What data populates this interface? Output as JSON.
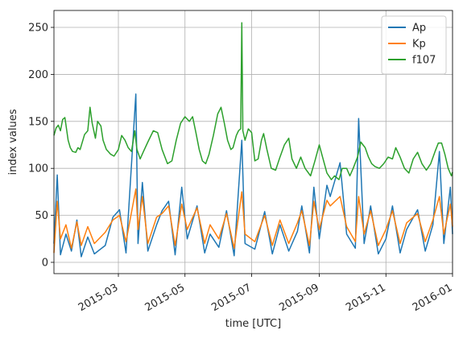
{
  "chart_data": {
    "type": "line",
    "title": "",
    "xlabel": "time [UTC]",
    "ylabel": "index values",
    "x_start": "2015-01-01",
    "x_end": "2016-01-01",
    "xlim": [
      "2015-01-01",
      "2016-01-01"
    ],
    "ylim": [
      -12,
      268
    ],
    "grid": true,
    "legend_position": "top-right",
    "x_ticks": [
      {
        "date": "2015-03-01",
        "label": "2015-03"
      },
      {
        "date": "2015-05-01",
        "label": "2015-05"
      },
      {
        "date": "2015-07-01",
        "label": "2015-07"
      },
      {
        "date": "2015-09-01",
        "label": "2015-09"
      },
      {
        "date": "2015-11-01",
        "label": "2015-11"
      },
      {
        "date": "2016-01-01",
        "label": "2016-01"
      }
    ],
    "y_ticks": [
      0,
      50,
      100,
      150,
      200,
      250
    ],
    "series": [
      {
        "name": "Ap",
        "color": "#1f77b4",
        "points": [
          [
            "2015-01-01",
            20
          ],
          [
            "2015-01-04",
            93
          ],
          [
            "2015-01-07",
            8
          ],
          [
            "2015-01-12",
            30
          ],
          [
            "2015-01-17",
            12
          ],
          [
            "2015-01-22",
            45
          ],
          [
            "2015-01-26",
            6
          ],
          [
            "2015-02-01",
            27
          ],
          [
            "2015-02-07",
            9
          ],
          [
            "2015-02-17",
            18
          ],
          [
            "2015-02-24",
            48
          ],
          [
            "2015-03-02",
            56
          ],
          [
            "2015-03-08",
            10
          ],
          [
            "2015-03-17",
            179
          ],
          [
            "2015-03-19",
            20
          ],
          [
            "2015-03-23",
            85
          ],
          [
            "2015-03-28",
            12
          ],
          [
            "2015-04-05",
            40
          ],
          [
            "2015-04-10",
            55
          ],
          [
            "2015-04-16",
            65
          ],
          [
            "2015-04-22",
            8
          ],
          [
            "2015-04-28",
            80
          ],
          [
            "2015-05-03",
            25
          ],
          [
            "2015-05-12",
            60
          ],
          [
            "2015-05-19",
            10
          ],
          [
            "2015-05-24",
            30
          ],
          [
            "2015-06-01",
            16
          ],
          [
            "2015-06-08",
            55
          ],
          [
            "2015-06-15",
            7
          ],
          [
            "2015-06-22",
            130
          ],
          [
            "2015-06-25",
            20
          ],
          [
            "2015-07-04",
            14
          ],
          [
            "2015-07-13",
            54
          ],
          [
            "2015-07-20",
            9
          ],
          [
            "2015-07-27",
            40
          ],
          [
            "2015-08-04",
            12
          ],
          [
            "2015-08-12",
            33
          ],
          [
            "2015-08-16",
            60
          ],
          [
            "2015-08-23",
            10
          ],
          [
            "2015-08-27",
            80
          ],
          [
            "2015-09-01",
            25
          ],
          [
            "2015-09-08",
            82
          ],
          [
            "2015-09-11",
            70
          ],
          [
            "2015-09-20",
            106
          ],
          [
            "2015-09-26",
            30
          ],
          [
            "2015-10-04",
            15
          ],
          [
            "2015-10-07",
            153
          ],
          [
            "2015-10-12",
            20
          ],
          [
            "2015-10-18",
            60
          ],
          [
            "2015-10-25",
            9
          ],
          [
            "2015-11-01",
            25
          ],
          [
            "2015-11-07",
            60
          ],
          [
            "2015-11-14",
            10
          ],
          [
            "2015-11-20",
            35
          ],
          [
            "2015-11-30",
            56
          ],
          [
            "2015-12-07",
            12
          ],
          [
            "2015-12-14",
            40
          ],
          [
            "2015-12-20",
            118
          ],
          [
            "2015-12-24",
            20
          ],
          [
            "2015-12-30",
            80
          ],
          [
            "2016-01-01",
            30
          ]
        ]
      },
      {
        "name": "Kp",
        "color": "#ff7f0e",
        "points": [
          [
            "2015-01-01",
            10
          ],
          [
            "2015-01-04",
            65
          ],
          [
            "2015-01-07",
            25
          ],
          [
            "2015-01-12",
            40
          ],
          [
            "2015-01-17",
            15
          ],
          [
            "2015-01-22",
            43
          ],
          [
            "2015-01-26",
            18
          ],
          [
            "2015-02-01",
            38
          ],
          [
            "2015-02-07",
            20
          ],
          [
            "2015-02-17",
            32
          ],
          [
            "2015-02-24",
            45
          ],
          [
            "2015-03-02",
            50
          ],
          [
            "2015-03-08",
            22
          ],
          [
            "2015-03-17",
            78
          ],
          [
            "2015-03-19",
            35
          ],
          [
            "2015-03-23",
            70
          ],
          [
            "2015-03-28",
            20
          ],
          [
            "2015-04-05",
            48
          ],
          [
            "2015-04-10",
            52
          ],
          [
            "2015-04-16",
            60
          ],
          [
            "2015-04-22",
            18
          ],
          [
            "2015-04-28",
            62
          ],
          [
            "2015-05-03",
            35
          ],
          [
            "2015-05-12",
            58
          ],
          [
            "2015-05-19",
            20
          ],
          [
            "2015-05-24",
            40
          ],
          [
            "2015-06-01",
            25
          ],
          [
            "2015-06-08",
            52
          ],
          [
            "2015-06-15",
            15
          ],
          [
            "2015-06-22",
            75
          ],
          [
            "2015-06-25",
            30
          ],
          [
            "2015-07-04",
            22
          ],
          [
            "2015-07-13",
            50
          ],
          [
            "2015-07-20",
            18
          ],
          [
            "2015-07-27",
            45
          ],
          [
            "2015-08-04",
            20
          ],
          [
            "2015-08-12",
            42
          ],
          [
            "2015-08-16",
            55
          ],
          [
            "2015-08-23",
            18
          ],
          [
            "2015-08-27",
            65
          ],
          [
            "2015-09-01",
            35
          ],
          [
            "2015-09-08",
            66
          ],
          [
            "2015-09-11",
            60
          ],
          [
            "2015-09-20",
            70
          ],
          [
            "2015-09-26",
            38
          ],
          [
            "2015-10-04",
            22
          ],
          [
            "2015-10-07",
            70
          ],
          [
            "2015-10-12",
            30
          ],
          [
            "2015-10-18",
            55
          ],
          [
            "2015-10-25",
            18
          ],
          [
            "2015-11-01",
            35
          ],
          [
            "2015-11-07",
            55
          ],
          [
            "2015-11-14",
            20
          ],
          [
            "2015-11-20",
            42
          ],
          [
            "2015-11-30",
            52
          ],
          [
            "2015-12-07",
            22
          ],
          [
            "2015-12-14",
            45
          ],
          [
            "2015-12-20",
            70
          ],
          [
            "2015-12-24",
            30
          ],
          [
            "2015-12-30",
            62
          ],
          [
            "2016-01-01",
            38
          ]
        ]
      },
      {
        "name": "f107",
        "color": "#2ca02c",
        "points": [
          [
            "2015-01-01",
            135
          ],
          [
            "2015-01-03",
            143
          ],
          [
            "2015-01-05",
            146
          ],
          [
            "2015-01-07",
            140
          ],
          [
            "2015-01-09",
            152
          ],
          [
            "2015-01-11",
            154
          ],
          [
            "2015-01-14",
            130
          ],
          [
            "2015-01-16",
            122
          ],
          [
            "2015-01-18",
            118
          ],
          [
            "2015-01-21",
            117
          ],
          [
            "2015-01-23",
            122
          ],
          [
            "2015-01-25",
            120
          ],
          [
            "2015-01-29",
            136
          ],
          [
            "2015-02-01",
            140
          ],
          [
            "2015-02-03",
            165
          ],
          [
            "2015-02-05",
            148
          ],
          [
            "2015-02-08",
            132
          ],
          [
            "2015-02-10",
            150
          ],
          [
            "2015-02-13",
            145
          ],
          [
            "2015-02-15",
            130
          ],
          [
            "2015-02-18",
            120
          ],
          [
            "2015-02-22",
            115
          ],
          [
            "2015-02-25",
            113
          ],
          [
            "2015-03-01",
            120
          ],
          [
            "2015-03-04",
            135
          ],
          [
            "2015-03-07",
            130
          ],
          [
            "2015-03-10",
            122
          ],
          [
            "2015-03-13",
            118
          ],
          [
            "2015-03-16",
            140
          ],
          [
            "2015-03-18",
            120
          ],
          [
            "2015-03-21",
            110
          ],
          [
            "2015-03-24",
            118
          ],
          [
            "2015-03-28",
            128
          ],
          [
            "2015-04-02",
            140
          ],
          [
            "2015-04-06",
            138
          ],
          [
            "2015-04-10",
            120
          ],
          [
            "2015-04-15",
            105
          ],
          [
            "2015-04-19",
            108
          ],
          [
            "2015-04-23",
            130
          ],
          [
            "2015-04-27",
            148
          ],
          [
            "2015-05-01",
            155
          ],
          [
            "2015-05-05",
            150
          ],
          [
            "2015-05-08",
            155
          ],
          [
            "2015-05-11",
            138
          ],
          [
            "2015-05-14",
            120
          ],
          [
            "2015-05-17",
            108
          ],
          [
            "2015-05-20",
            105
          ],
          [
            "2015-05-23",
            115
          ],
          [
            "2015-05-27",
            135
          ],
          [
            "2015-05-31",
            158
          ],
          [
            "2015-06-03",
            165
          ],
          [
            "2015-06-06",
            148
          ],
          [
            "2015-06-09",
            130
          ],
          [
            "2015-06-12",
            120
          ],
          [
            "2015-06-14",
            122
          ],
          [
            "2015-06-17",
            135
          ],
          [
            "2015-06-19",
            140
          ],
          [
            "2015-06-21",
            142
          ],
          [
            "2015-06-22",
            255
          ],
          [
            "2015-06-23",
            140
          ],
          [
            "2015-06-25",
            130
          ],
          [
            "2015-06-28",
            142
          ],
          [
            "2015-07-01",
            138
          ],
          [
            "2015-07-04",
            108
          ],
          [
            "2015-07-07",
            110
          ],
          [
            "2015-07-10",
            130
          ],
          [
            "2015-07-12",
            137
          ],
          [
            "2015-07-15",
            120
          ],
          [
            "2015-07-19",
            100
          ],
          [
            "2015-07-23",
            98
          ],
          [
            "2015-07-27",
            112
          ],
          [
            "2015-07-31",
            125
          ],
          [
            "2015-08-04",
            132
          ],
          [
            "2015-08-07",
            110
          ],
          [
            "2015-08-11",
            100
          ],
          [
            "2015-08-15",
            112
          ],
          [
            "2015-08-19",
            100
          ],
          [
            "2015-08-24",
            92
          ],
          [
            "2015-08-28",
            108
          ],
          [
            "2015-09-01",
            125
          ],
          [
            "2015-09-04",
            112
          ],
          [
            "2015-09-08",
            95
          ],
          [
            "2015-09-12",
            88
          ],
          [
            "2015-09-15",
            92
          ],
          [
            "2015-09-19",
            88
          ],
          [
            "2015-09-22",
            100
          ],
          [
            "2015-09-26",
            100
          ],
          [
            "2015-09-29",
            92
          ],
          [
            "2015-10-02",
            100
          ],
          [
            "2015-10-06",
            112
          ],
          [
            "2015-10-09",
            128
          ],
          [
            "2015-10-13",
            122
          ],
          [
            "2015-10-16",
            112
          ],
          [
            "2015-10-19",
            105
          ],
          [
            "2015-10-22",
            102
          ],
          [
            "2015-10-26",
            100
          ],
          [
            "2015-10-30",
            105
          ],
          [
            "2015-11-03",
            112
          ],
          [
            "2015-11-07",
            110
          ],
          [
            "2015-11-10",
            122
          ],
          [
            "2015-11-14",
            112
          ],
          [
            "2015-11-18",
            100
          ],
          [
            "2015-11-22",
            95
          ],
          [
            "2015-11-26",
            110
          ],
          [
            "2015-11-30",
            117
          ],
          [
            "2015-12-04",
            105
          ],
          [
            "2015-12-08",
            98
          ],
          [
            "2015-12-12",
            105
          ],
          [
            "2015-12-16",
            118
          ],
          [
            "2015-12-19",
            127
          ],
          [
            "2015-12-22",
            127
          ],
          [
            "2015-12-25",
            115
          ],
          [
            "2015-12-28",
            100
          ],
          [
            "2015-12-31",
            92
          ],
          [
            "2016-01-01",
            96
          ]
        ]
      }
    ]
  }
}
